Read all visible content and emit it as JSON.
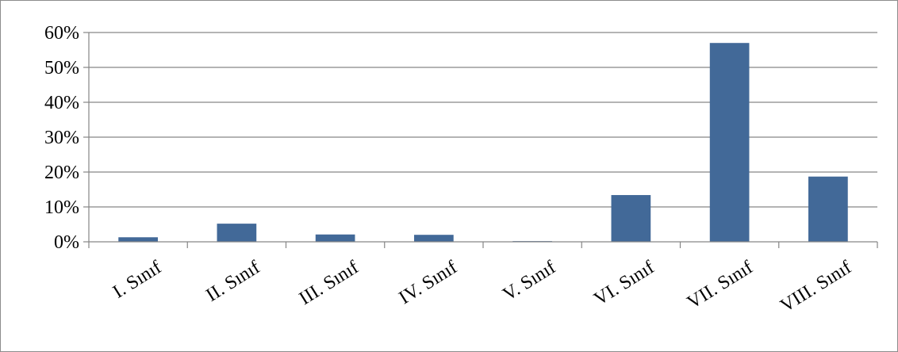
{
  "chart_data": {
    "type": "bar",
    "categories": [
      "I. Sınıf",
      "II. Sınıf",
      "III. Sınıf",
      "IV. Sınıf",
      "V. Sınıf",
      "VI. Sınıf",
      "VII. Sınıf",
      "VIII. Sınıf"
    ],
    "values": [
      1.3,
      5.2,
      2.1,
      2.0,
      0.2,
      13.4,
      57.0,
      18.7
    ],
    "ylim": [
      0,
      60
    ],
    "yticks": [
      0,
      10,
      20,
      30,
      40,
      50,
      60
    ],
    "ytick_labels": [
      "0%",
      "10%",
      "20%",
      "30%",
      "40%",
      "50%",
      "60%"
    ],
    "y_unit": "percent",
    "grid": true,
    "legend": "none",
    "title": "",
    "xlabel": "",
    "ylabel": "",
    "colors": {
      "bar": "#426998",
      "grid": "#868686",
      "axis": "#868686",
      "border": "#8c8c8c"
    }
  }
}
